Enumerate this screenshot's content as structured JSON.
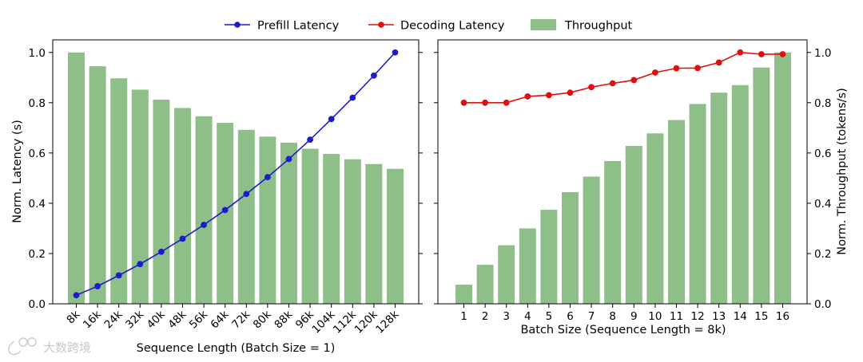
{
  "colors": {
    "bar": "#8fbf88",
    "prefill": "#1c1cc8",
    "decoding": "#e01010",
    "axis": "#000000"
  },
  "legend": {
    "items": [
      {
        "label": "Prefill Latency",
        "kind": "line",
        "color": "#1c1cc8"
      },
      {
        "label": "Decoding Latency",
        "kind": "line",
        "color": "#e01010"
      },
      {
        "label": "Throughput",
        "kind": "bar",
        "color": "#8fbf88"
      }
    ]
  },
  "watermark": {
    "text": "大数跨境"
  },
  "chart_data": [
    {
      "type": "bar+line",
      "xlabel": "Sequence Length (Batch Size = 1)",
      "ylabel": "Norm. Latency (s)",
      "ylim": [
        0,
        1.05
      ],
      "yticks": [
        "0.0",
        "0.2",
        "0.4",
        "0.6",
        "0.8",
        "1.0"
      ],
      "categories": [
        "8k",
        "16k",
        "24k",
        "32k",
        "40k",
        "48k",
        "56k",
        "64k",
        "72k",
        "80k",
        "88k",
        "96k",
        "104k",
        "112k",
        "120k",
        "128k"
      ],
      "series": [
        {
          "name": "Throughput",
          "kind": "bar",
          "values": [
            1.0,
            0.945,
            0.897,
            0.852,
            0.812,
            0.779,
            0.746,
            0.72,
            0.692,
            0.665,
            0.641,
            0.617,
            0.596,
            0.575,
            0.556,
            0.537
          ]
        },
        {
          "name": "Prefill Latency",
          "kind": "line",
          "values": [
            0.034,
            0.07,
            0.113,
            0.158,
            0.207,
            0.259,
            0.314,
            0.373,
            0.437,
            0.504,
            0.576,
            0.653,
            0.735,
            0.82,
            0.908,
            1.0
          ]
        }
      ]
    },
    {
      "type": "bar+line",
      "xlabel": "Batch Size (Sequence Length = 8k)",
      "ylabel": "Norm. Throughput (tokens/s)",
      "ylim": [
        0,
        1.05
      ],
      "yticks": [
        "0.0",
        "0.2",
        "0.4",
        "0.6",
        "0.8",
        "1.0"
      ],
      "categories": [
        "1",
        "2",
        "3",
        "4",
        "5",
        "6",
        "7",
        "8",
        "9",
        "10",
        "11",
        "12",
        "13",
        "14",
        "15",
        "16"
      ],
      "series": [
        {
          "name": "Throughput",
          "kind": "bar",
          "values": [
            0.076,
            0.155,
            0.233,
            0.3,
            0.374,
            0.444,
            0.506,
            0.568,
            0.628,
            0.678,
            0.731,
            0.795,
            0.84,
            0.87,
            0.94,
            1.0
          ]
        },
        {
          "name": "Decoding Latency",
          "kind": "line",
          "values": [
            0.8,
            0.8,
            0.8,
            0.825,
            0.83,
            0.84,
            0.862,
            0.877,
            0.89,
            0.92,
            0.937,
            0.938,
            0.96,
            1.0,
            0.993,
            0.993
          ]
        }
      ]
    }
  ]
}
